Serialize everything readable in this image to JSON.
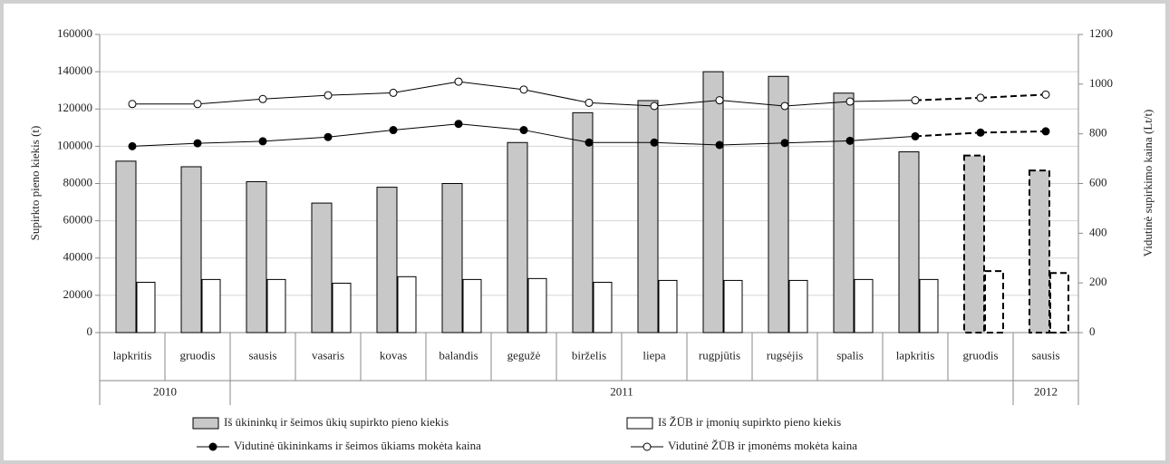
{
  "chart_data": {
    "type": "bar-line",
    "categories": [
      "lapkritis",
      "gruodis",
      "sausis",
      "vasaris",
      "kovas",
      "balandis",
      "gegužė",
      "birželis",
      "liepa",
      "rugpjūtis",
      "rugsėjis",
      "spalis",
      "lapkritis",
      "gruodis",
      "sausis"
    ],
    "years": [
      "2010",
      "2010",
      "2011",
      "2011",
      "2011",
      "2011",
      "2011",
      "2011",
      "2011",
      "2011",
      "2011",
      "2011",
      "2011",
      "2011",
      "2012"
    ],
    "dashed": [
      false,
      false,
      false,
      false,
      false,
      false,
      false,
      false,
      false,
      false,
      false,
      false,
      false,
      true,
      true
    ],
    "ylabel": "Supirkto pieno kiekis (t)",
    "y2label": "Vidutinė supirkimo kaina (Lt/t)",
    "ylim": [
      0,
      160000
    ],
    "yticks": [
      0,
      20000,
      40000,
      60000,
      80000,
      100000,
      120000,
      140000,
      160000
    ],
    "y2lim": [
      0,
      1200
    ],
    "y2ticks": [
      0,
      200,
      400,
      600,
      800,
      1000,
      1200
    ],
    "grid": true,
    "series": [
      {
        "name": "Iš ūkininkų ir šeimos ūkių supirkto pieno kiekis",
        "kind": "bar",
        "color": "#c8c8c8",
        "values": [
          92000,
          89000,
          81000,
          69500,
          78000,
          80000,
          102000,
          118000,
          124500,
          140000,
          137500,
          128500,
          97000,
          95000,
          87000
        ]
      },
      {
        "name": "Iš ŽŪB ir įmonių supirkto pieno kiekis",
        "kind": "bar",
        "color": "#ffffff",
        "values": [
          27000,
          28500,
          28500,
          26500,
          30000,
          28500,
          29000,
          27000,
          28000,
          28000,
          28000,
          28500,
          28500,
          33000,
          32000
        ]
      },
      {
        "name": "Vidutinė ūkininkams ir šeimos ūkiams mokėta kaina",
        "kind": "line",
        "axis": "y2",
        "color": "#000000",
        "marker": "filled",
        "values": [
          750,
          762,
          770,
          787,
          815,
          840,
          815,
          765,
          765,
          755,
          763,
          772,
          790,
          805,
          810
        ]
      },
      {
        "name": "Vidutinė ŽŪB ir įmonėms mokėta kaina",
        "kind": "line",
        "axis": "y2",
        "color": "#000000",
        "marker": "open",
        "values": [
          920,
          920,
          940,
          955,
          965,
          1010,
          978,
          925,
          912,
          935,
          912,
          930,
          935,
          945,
          958
        ]
      }
    ]
  }
}
